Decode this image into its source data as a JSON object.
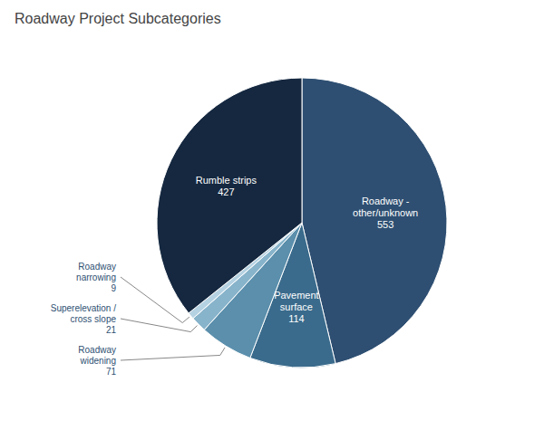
{
  "chart_data": {
    "type": "pie",
    "title": "Roadway Project Subcategories",
    "categories": [
      "Roadway -\nother/unknown\n553",
      "Pavement\nsurface\n114",
      "Roadway\nwidening\n71",
      "Superelevation /\ncross slope\n21",
      "Roadway\nnarrowing\n9",
      "Rumble strips\n427"
    ],
    "values": [
      553,
      114,
      71,
      21,
      9,
      427
    ],
    "colors": [
      "#2e4f72",
      "#3a6b8c",
      "#5b8fac",
      "#88b4cb",
      "#b5d2e2",
      "#152840"
    ]
  }
}
